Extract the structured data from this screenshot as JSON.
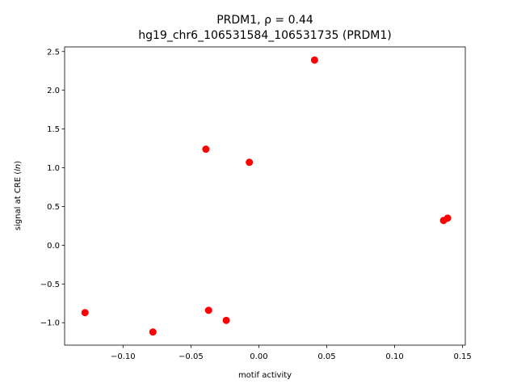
{
  "chart_data": {
    "type": "scatter",
    "title": "PRDM1, ρ = 0.44",
    "subtitle": "hg19_chr6_106531584_106531735 (PRDM1)",
    "xlabel": "motif activity",
    "ylabel": "signal at CRE (ln)",
    "xlim": [
      -0.143,
      0.152
    ],
    "ylim": [
      -1.29,
      2.56
    ],
    "xticks": [
      -0.1,
      -0.05,
      0.0,
      0.05,
      0.1,
      0.15
    ],
    "xtick_labels": [
      "−0.10",
      "−0.05",
      "0.00",
      "0.05",
      "0.10",
      "0.15"
    ],
    "yticks": [
      -1.0,
      -0.5,
      0.0,
      0.5,
      1.0,
      1.5,
      2.0,
      2.5
    ],
    "ytick_labels": [
      "−1.0",
      "−0.5",
      "0.0",
      "0.5",
      "1.0",
      "1.5",
      "2.0",
      "2.5"
    ],
    "grid": false,
    "marker_color": "#ff0000",
    "series": [
      {
        "x": [
          0.041,
          -0.039,
          -0.007,
          0.136,
          0.139,
          -0.128,
          -0.037,
          -0.024,
          -0.078
        ],
        "y": [
          2.39,
          1.24,
          1.07,
          0.32,
          0.35,
          -0.87,
          -0.84,
          -0.97,
          -1.12
        ]
      }
    ]
  }
}
